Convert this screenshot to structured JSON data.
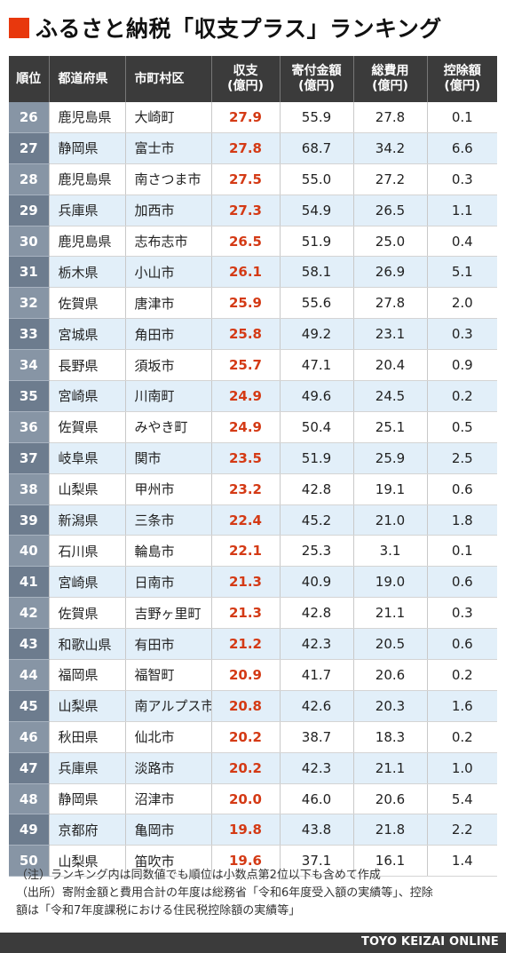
{
  "title": "ふるさと納税「収支プラス」ランキング",
  "headers": {
    "rank": "順位",
    "prefecture": "都道府県",
    "municipality": "市町村区",
    "balance": "収支\n(億円)",
    "donations": "寄付金額\n(億円)",
    "total_cost": "総費用\n(億円)",
    "deduction": "控除額\n(億円)"
  },
  "rows": [
    {
      "rank": "26",
      "pref": "鹿児島県",
      "city": "大崎町",
      "balance": "27.9",
      "donation": "55.9",
      "cost": "27.8",
      "deduction": "0.1"
    },
    {
      "rank": "27",
      "pref": "静岡県",
      "city": "富士市",
      "balance": "27.8",
      "donation": "68.7",
      "cost": "34.2",
      "deduction": "6.6"
    },
    {
      "rank": "28",
      "pref": "鹿児島県",
      "city": "南さつま市",
      "balance": "27.5",
      "donation": "55.0",
      "cost": "27.2",
      "deduction": "0.3"
    },
    {
      "rank": "29",
      "pref": "兵庫県",
      "city": "加西市",
      "balance": "27.3",
      "donation": "54.9",
      "cost": "26.5",
      "deduction": "1.1"
    },
    {
      "rank": "30",
      "pref": "鹿児島県",
      "city": "志布志市",
      "balance": "26.5",
      "donation": "51.9",
      "cost": "25.0",
      "deduction": "0.4"
    },
    {
      "rank": "31",
      "pref": "栃木県",
      "city": "小山市",
      "balance": "26.1",
      "donation": "58.1",
      "cost": "26.9",
      "deduction": "5.1"
    },
    {
      "rank": "32",
      "pref": "佐賀県",
      "city": "唐津市",
      "balance": "25.9",
      "donation": "55.6",
      "cost": "27.8",
      "deduction": "2.0"
    },
    {
      "rank": "33",
      "pref": "宮城県",
      "city": "角田市",
      "balance": "25.8",
      "donation": "49.2",
      "cost": "23.1",
      "deduction": "0.3"
    },
    {
      "rank": "34",
      "pref": "長野県",
      "city": "須坂市",
      "balance": "25.7",
      "donation": "47.1",
      "cost": "20.4",
      "deduction": "0.9"
    },
    {
      "rank": "35",
      "pref": "宮崎県",
      "city": "川南町",
      "balance": "24.9",
      "donation": "49.6",
      "cost": "24.5",
      "deduction": "0.2"
    },
    {
      "rank": "36",
      "pref": "佐賀県",
      "city": "みやき町",
      "balance": "24.9",
      "donation": "50.4",
      "cost": "25.1",
      "deduction": "0.5"
    },
    {
      "rank": "37",
      "pref": "岐阜県",
      "city": "関市",
      "balance": "23.5",
      "donation": "51.9",
      "cost": "25.9",
      "deduction": "2.5"
    },
    {
      "rank": "38",
      "pref": "山梨県",
      "city": "甲州市",
      "balance": "23.2",
      "donation": "42.8",
      "cost": "19.1",
      "deduction": "0.6"
    },
    {
      "rank": "39",
      "pref": "新潟県",
      "city": "三条市",
      "balance": "22.4",
      "donation": "45.2",
      "cost": "21.0",
      "deduction": "1.8"
    },
    {
      "rank": "40",
      "pref": "石川県",
      "city": "輪島市",
      "balance": "22.1",
      "donation": "25.3",
      "cost": "3.1",
      "deduction": "0.1"
    },
    {
      "rank": "41",
      "pref": "宮崎県",
      "city": "日南市",
      "balance": "21.3",
      "donation": "40.9",
      "cost": "19.0",
      "deduction": "0.6"
    },
    {
      "rank": "42",
      "pref": "佐賀県",
      "city": "吉野ヶ里町",
      "balance": "21.3",
      "donation": "42.8",
      "cost": "21.1",
      "deduction": "0.3"
    },
    {
      "rank": "43",
      "pref": "和歌山県",
      "city": "有田市",
      "balance": "21.2",
      "donation": "42.3",
      "cost": "20.5",
      "deduction": "0.6"
    },
    {
      "rank": "44",
      "pref": "福岡県",
      "city": "福智町",
      "balance": "20.9",
      "donation": "41.7",
      "cost": "20.6",
      "deduction": "0.2"
    },
    {
      "rank": "45",
      "pref": "山梨県",
      "city": "南アルプス市",
      "balance": "20.8",
      "donation": "42.6",
      "cost": "20.3",
      "deduction": "1.6"
    },
    {
      "rank": "46",
      "pref": "秋田県",
      "city": "仙北市",
      "balance": "20.2",
      "donation": "38.7",
      "cost": "18.3",
      "deduction": "0.2"
    },
    {
      "rank": "47",
      "pref": "兵庫県",
      "city": "淡路市",
      "balance": "20.2",
      "donation": "42.3",
      "cost": "21.1",
      "deduction": "1.0"
    },
    {
      "rank": "48",
      "pref": "静岡県",
      "city": "沼津市",
      "balance": "20.0",
      "donation": "46.0",
      "cost": "20.6",
      "deduction": "5.4"
    },
    {
      "rank": "49",
      "pref": "京都府",
      "city": "亀岡市",
      "balance": "19.8",
      "donation": "43.8",
      "cost": "21.8",
      "deduction": "2.2"
    },
    {
      "rank": "50",
      "pref": "山梨県",
      "city": "笛吹市",
      "balance": "19.6",
      "donation": "37.1",
      "cost": "16.1",
      "deduction": "1.4"
    }
  ],
  "notes": [
    "（注）ランキング内は同数値でも順位は小数点第2位以下も含めて作成",
    "（出所）寄附金額と費用合計の年度は総務省「令和6年度受入額の実績等」、控除",
    "額は「令和7年度課税における住民税控除額の実績等」"
  ],
  "footer": "TOYO KEIZAI ONLINE",
  "colors": {
    "accent": "#e8380d",
    "header_bg": "#3b3b3b",
    "rank_bg": "#8795a5",
    "stripe": "#e2eff9",
    "profit_text": "#d43a15"
  }
}
